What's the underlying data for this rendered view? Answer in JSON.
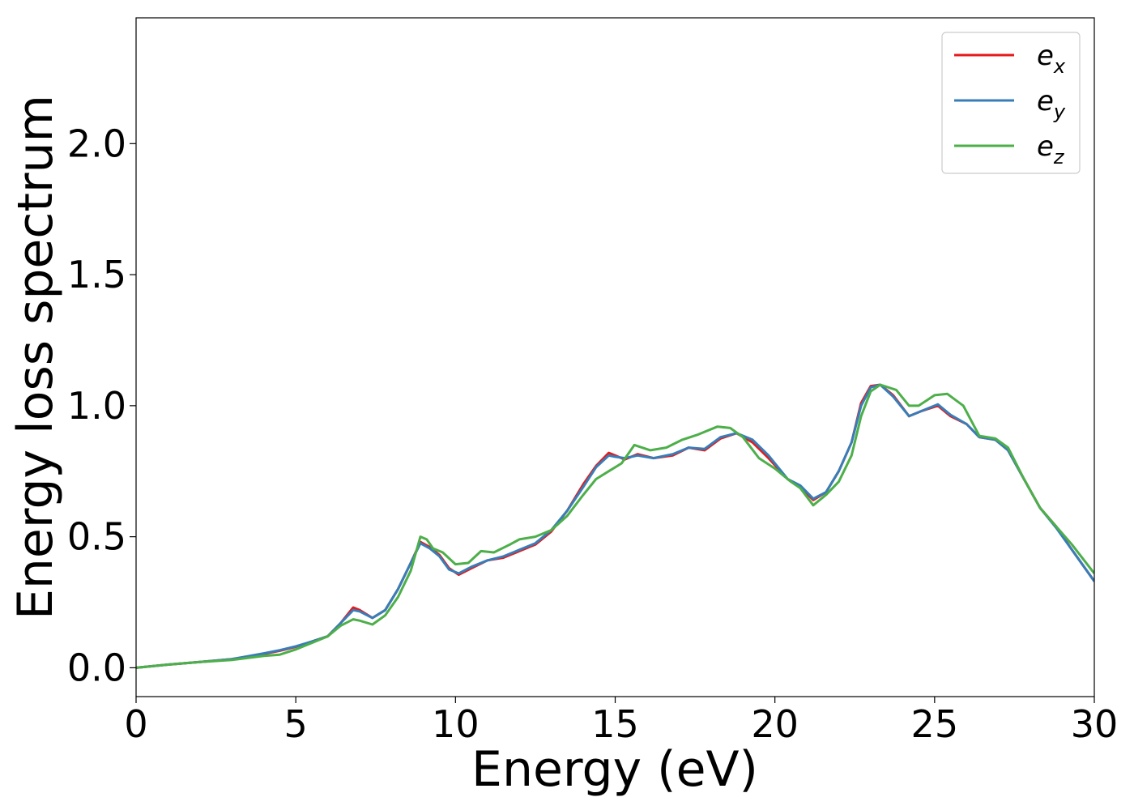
{
  "chart_data": {
    "type": "line",
    "title": "",
    "xlabel": "Energy (eV)",
    "ylabel": "Energy loss spectrum",
    "xlim": [
      0,
      30
    ],
    "ylim": [
      -0.11,
      2.48
    ],
    "xticks": [
      0,
      5,
      10,
      15,
      20,
      25,
      30
    ],
    "xtick_labels": [
      "0",
      "5",
      "10",
      "15",
      "20",
      "25",
      "30"
    ],
    "yticks": [
      0.0,
      0.5,
      1.0,
      1.5,
      2.0
    ],
    "ytick_labels": [
      "0.0",
      "0.5",
      "1.0",
      "1.5",
      "2.0"
    ],
    "grid": false,
    "legend_position": "top-right",
    "series": [
      {
        "name": "e",
        "subscript": "x",
        "color": "#e41a1c",
        "points": [
          [
            0,
            0.0
          ],
          [
            1,
            0.012
          ],
          [
            2,
            0.022
          ],
          [
            3,
            0.033
          ],
          [
            4,
            0.053
          ],
          [
            4.5,
            0.065
          ],
          [
            5,
            0.08
          ],
          [
            5.5,
            0.1
          ],
          [
            6,
            0.12
          ],
          [
            6.4,
            0.17
          ],
          [
            6.8,
            0.23
          ],
          [
            7,
            0.22
          ],
          [
            7.4,
            0.19
          ],
          [
            7.8,
            0.22
          ],
          [
            8.2,
            0.3
          ],
          [
            8.6,
            0.4
          ],
          [
            8.9,
            0.48
          ],
          [
            9.2,
            0.46
          ],
          [
            9.5,
            0.43
          ],
          [
            9.8,
            0.38
          ],
          [
            10.1,
            0.355
          ],
          [
            10.5,
            0.38
          ],
          [
            11,
            0.41
          ],
          [
            11.5,
            0.42
          ],
          [
            12,
            0.445
          ],
          [
            12.5,
            0.47
          ],
          [
            13,
            0.52
          ],
          [
            13.5,
            0.6
          ],
          [
            14,
            0.7
          ],
          [
            14.4,
            0.77
          ],
          [
            14.8,
            0.82
          ],
          [
            15,
            0.81
          ],
          [
            15.3,
            0.795
          ],
          [
            15.7,
            0.815
          ],
          [
            16.2,
            0.8
          ],
          [
            16.8,
            0.81
          ],
          [
            17.3,
            0.84
          ],
          [
            17.8,
            0.83
          ],
          [
            18.3,
            0.875
          ],
          [
            18.8,
            0.895
          ],
          [
            19.3,
            0.86
          ],
          [
            19.8,
            0.8
          ],
          [
            20.4,
            0.72
          ],
          [
            20.8,
            0.69
          ],
          [
            21.2,
            0.64
          ],
          [
            21.6,
            0.67
          ],
          [
            22,
            0.75
          ],
          [
            22.4,
            0.86
          ],
          [
            22.7,
            1.01
          ],
          [
            23,
            1.075
          ],
          [
            23.3,
            1.08
          ],
          [
            23.7,
            1.04
          ],
          [
            24.2,
            0.96
          ],
          [
            24.6,
            0.98
          ],
          [
            25.1,
            1.0
          ],
          [
            25.5,
            0.96
          ],
          [
            26,
            0.93
          ],
          [
            26.4,
            0.88
          ],
          [
            26.9,
            0.87
          ],
          [
            27.3,
            0.83
          ],
          [
            27.8,
            0.72
          ],
          [
            28.3,
            0.61
          ],
          [
            28.8,
            0.54
          ],
          [
            29.3,
            0.45
          ],
          [
            30,
            0.33
          ]
        ]
      },
      {
        "name": "e",
        "subscript": "y",
        "color": "#377eb8",
        "points": [
          [
            0,
            0.0
          ],
          [
            1,
            0.012
          ],
          [
            2,
            0.022
          ],
          [
            3,
            0.033
          ],
          [
            4,
            0.055
          ],
          [
            4.5,
            0.067
          ],
          [
            5,
            0.082
          ],
          [
            5.5,
            0.1
          ],
          [
            6,
            0.12
          ],
          [
            6.4,
            0.17
          ],
          [
            6.8,
            0.22
          ],
          [
            7,
            0.215
          ],
          [
            7.4,
            0.19
          ],
          [
            7.8,
            0.22
          ],
          [
            8.2,
            0.3
          ],
          [
            8.6,
            0.4
          ],
          [
            8.9,
            0.475
          ],
          [
            9.2,
            0.455
          ],
          [
            9.5,
            0.425
          ],
          [
            9.8,
            0.375
          ],
          [
            10.1,
            0.36
          ],
          [
            10.5,
            0.385
          ],
          [
            11,
            0.41
          ],
          [
            11.5,
            0.425
          ],
          [
            12,
            0.45
          ],
          [
            12.5,
            0.475
          ],
          [
            13,
            0.525
          ],
          [
            13.5,
            0.6
          ],
          [
            14,
            0.69
          ],
          [
            14.4,
            0.765
          ],
          [
            14.8,
            0.81
          ],
          [
            15,
            0.805
          ],
          [
            15.3,
            0.8
          ],
          [
            15.7,
            0.81
          ],
          [
            16.2,
            0.8
          ],
          [
            16.8,
            0.815
          ],
          [
            17.3,
            0.84
          ],
          [
            17.8,
            0.835
          ],
          [
            18.3,
            0.88
          ],
          [
            18.8,
            0.895
          ],
          [
            19.3,
            0.87
          ],
          [
            19.8,
            0.81
          ],
          [
            20.4,
            0.72
          ],
          [
            20.8,
            0.695
          ],
          [
            21.2,
            0.645
          ],
          [
            21.6,
            0.67
          ],
          [
            22,
            0.75
          ],
          [
            22.4,
            0.86
          ],
          [
            22.7,
            1.0
          ],
          [
            23,
            1.07
          ],
          [
            23.3,
            1.08
          ],
          [
            23.7,
            1.035
          ],
          [
            24.2,
            0.96
          ],
          [
            24.6,
            0.98
          ],
          [
            25.1,
            1.005
          ],
          [
            25.5,
            0.965
          ],
          [
            26,
            0.93
          ],
          [
            26.4,
            0.88
          ],
          [
            26.9,
            0.87
          ],
          [
            27.3,
            0.83
          ],
          [
            27.8,
            0.72
          ],
          [
            28.3,
            0.61
          ],
          [
            28.8,
            0.535
          ],
          [
            29.3,
            0.45
          ],
          [
            30,
            0.33
          ]
        ]
      },
      {
        "name": "e",
        "subscript": "z",
        "color": "#4daf4a",
        "points": [
          [
            0,
            0.0
          ],
          [
            1,
            0.012
          ],
          [
            2,
            0.022
          ],
          [
            3,
            0.03
          ],
          [
            4,
            0.045
          ],
          [
            4.5,
            0.05
          ],
          [
            5,
            0.07
          ],
          [
            5.5,
            0.095
          ],
          [
            6,
            0.12
          ],
          [
            6.4,
            0.16
          ],
          [
            6.8,
            0.185
          ],
          [
            7,
            0.18
          ],
          [
            7.4,
            0.165
          ],
          [
            7.8,
            0.2
          ],
          [
            8.2,
            0.27
          ],
          [
            8.6,
            0.37
          ],
          [
            8.9,
            0.5
          ],
          [
            9.1,
            0.49
          ],
          [
            9.3,
            0.455
          ],
          [
            9.6,
            0.44
          ],
          [
            10,
            0.395
          ],
          [
            10.4,
            0.4
          ],
          [
            10.8,
            0.445
          ],
          [
            11.2,
            0.44
          ],
          [
            11.7,
            0.47
          ],
          [
            12,
            0.49
          ],
          [
            12.5,
            0.5
          ],
          [
            13,
            0.525
          ],
          [
            13.5,
            0.58
          ],
          [
            14,
            0.66
          ],
          [
            14.4,
            0.72
          ],
          [
            14.8,
            0.75
          ],
          [
            15.2,
            0.78
          ],
          [
            15.6,
            0.85
          ],
          [
            16.1,
            0.83
          ],
          [
            16.6,
            0.84
          ],
          [
            17.1,
            0.87
          ],
          [
            17.6,
            0.89
          ],
          [
            18.2,
            0.92
          ],
          [
            18.6,
            0.915
          ],
          [
            19,
            0.88
          ],
          [
            19.5,
            0.8
          ],
          [
            20,
            0.76
          ],
          [
            20.5,
            0.71
          ],
          [
            20.8,
            0.685
          ],
          [
            21.2,
            0.62
          ],
          [
            21.6,
            0.66
          ],
          [
            22,
            0.71
          ],
          [
            22.4,
            0.81
          ],
          [
            22.7,
            0.96
          ],
          [
            23,
            1.055
          ],
          [
            23.3,
            1.08
          ],
          [
            23.8,
            1.06
          ],
          [
            24.2,
            1.0
          ],
          [
            24.5,
            1.0
          ],
          [
            25,
            1.04
          ],
          [
            25.4,
            1.045
          ],
          [
            25.9,
            1.0
          ],
          [
            26.4,
            0.885
          ],
          [
            26.9,
            0.875
          ],
          [
            27.3,
            0.84
          ],
          [
            27.8,
            0.72
          ],
          [
            28.3,
            0.61
          ],
          [
            28.8,
            0.54
          ],
          [
            29.3,
            0.47
          ],
          [
            30,
            0.36
          ]
        ]
      }
    ]
  }
}
